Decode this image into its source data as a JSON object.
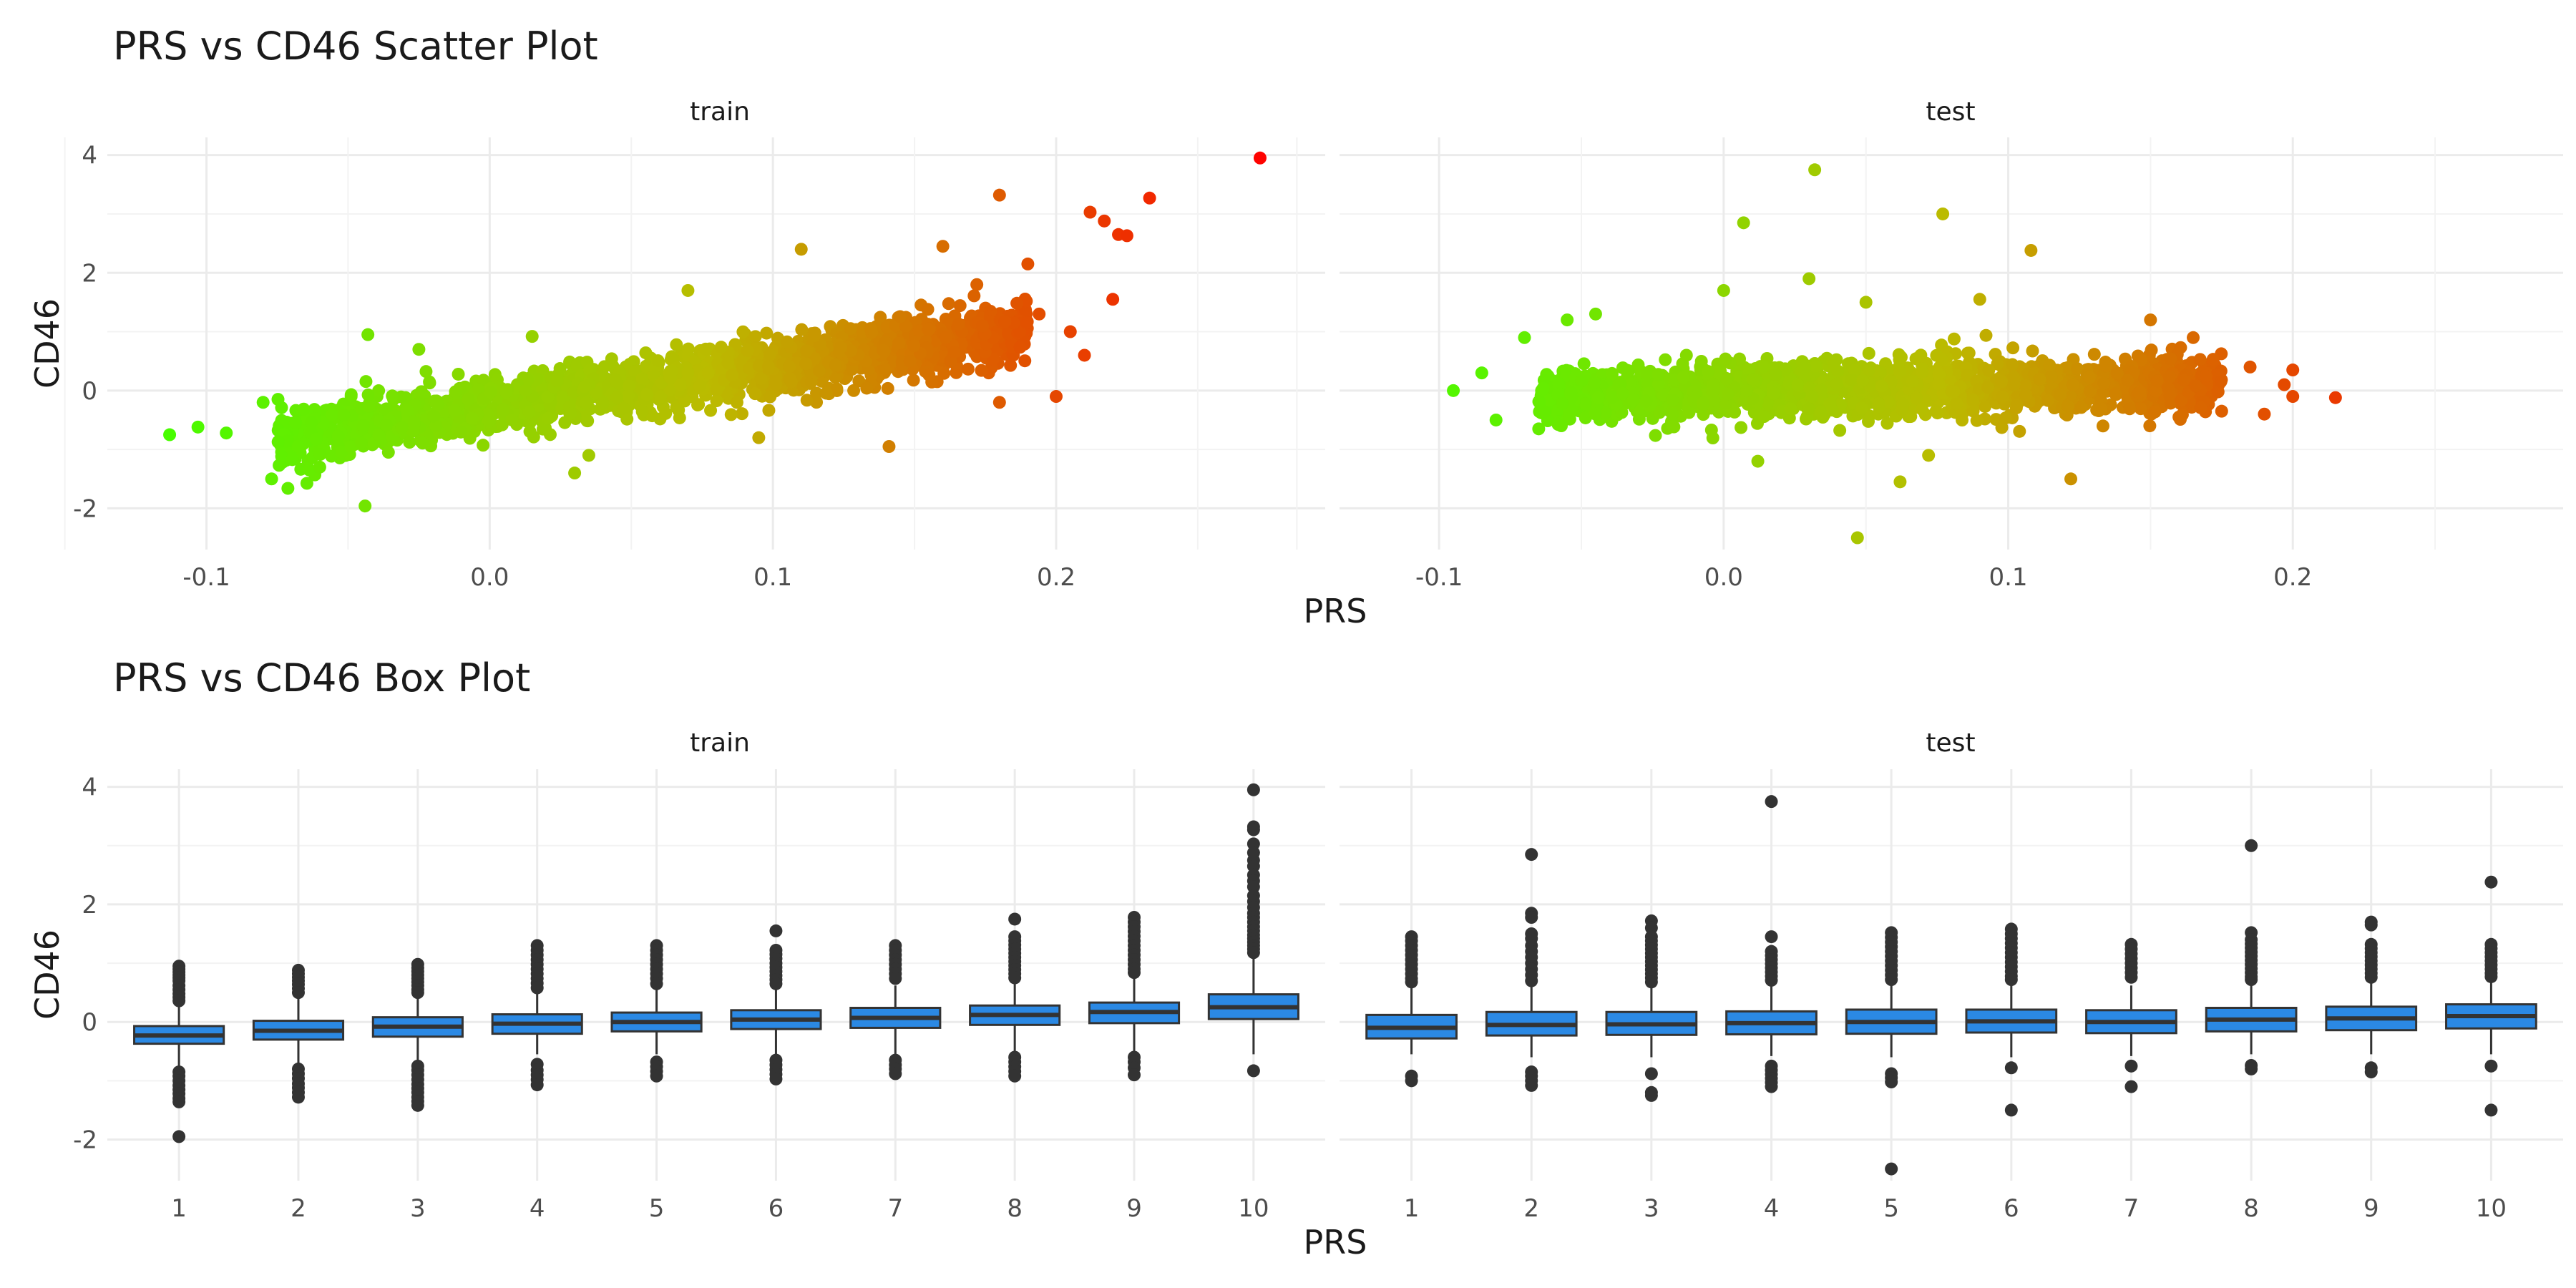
{
  "chart_data": [
    {
      "type": "scatter",
      "title": "PRS vs CD46 Scatter Plot",
      "xlabel": "PRS",
      "ylabel": "CD46",
      "xlim": [
        -0.135,
        0.295
      ],
      "ylim": [
        -2.7,
        4.3
      ],
      "x_ticks": [
        -0.1,
        0.0,
        0.1,
        0.2
      ],
      "x_tick_labels": [
        "-0.1",
        "0.0",
        "0.1",
        "0.2"
      ],
      "y_ticks": [
        -2,
        0,
        2,
        4
      ],
      "y_tick_labels": [
        "-2",
        "0",
        "2",
        "4"
      ],
      "grid": true,
      "color_gradient": {
        "low": "#44ff00",
        "mid": "#bbbb00",
        "high": "#ff0000",
        "mapped_to": "PRS"
      },
      "panels": [
        {
          "name": "train",
          "bulk": {
            "x_min": -0.075,
            "x_max": 0.19,
            "slope": 7.0,
            "intercept": -0.3,
            "y_spread": 0.45
          },
          "points": [
            [
              -0.113,
              -0.75
            ],
            [
              -0.103,
              -0.62
            ],
            [
              -0.093,
              -0.72
            ],
            [
              -0.08,
              -0.2
            ],
            [
              -0.077,
              -1.5
            ],
            [
              -0.044,
              -1.96
            ],
            [
              -0.043,
              0.95
            ],
            [
              -0.06,
              -1.3
            ],
            [
              -0.025,
              0.7
            ],
            [
              0.015,
              0.92
            ],
            [
              0.035,
              -1.1
            ],
            [
              0.03,
              -1.4
            ],
            [
              0.07,
              1.7
            ],
            [
              0.095,
              -0.8
            ],
            [
              0.11,
              2.4
            ],
            [
              0.141,
              -0.95
            ],
            [
              0.16,
              2.45
            ],
            [
              0.172,
              1.8
            ],
            [
              0.18,
              3.32
            ],
            [
              0.19,
              2.15
            ],
            [
              0.212,
              3.03
            ],
            [
              0.217,
              2.88
            ],
            [
              0.222,
              2.65
            ],
            [
              0.225,
              2.63
            ],
            [
              0.22,
              1.55
            ],
            [
              0.233,
              3.27
            ],
            [
              0.205,
              1.0
            ],
            [
              0.21,
              0.6
            ],
            [
              0.194,
              1.3
            ],
            [
              0.174,
              1.1
            ],
            [
              0.2,
              -0.1
            ],
            [
              0.18,
              -0.2
            ],
            [
              0.272,
              3.95
            ]
          ]
        },
        {
          "name": "test",
          "bulk": {
            "x_min": -0.065,
            "x_max": 0.175,
            "slope": 0.9,
            "intercept": -0.02,
            "y_spread": 0.42
          },
          "points": [
            [
              -0.095,
              0.0
            ],
            [
              -0.085,
              0.3
            ],
            [
              -0.07,
              0.9
            ],
            [
              -0.055,
              1.2
            ],
            [
              -0.045,
              1.3
            ],
            [
              -0.08,
              -0.5
            ],
            [
              -0.065,
              -0.65
            ],
            [
              0.007,
              2.85
            ],
            [
              0.032,
              3.75
            ],
            [
              0.077,
              3.0
            ],
            [
              0.108,
              2.38
            ],
            [
              0.122,
              -1.5
            ],
            [
              0.047,
              -2.5
            ],
            [
              0.062,
              -1.55
            ],
            [
              0.072,
              -1.1
            ],
            [
              0.012,
              -1.2
            ],
            [
              0.05,
              1.5
            ],
            [
              0.09,
              1.55
            ],
            [
              0.15,
              1.2
            ],
            [
              0.165,
              0.9
            ],
            [
              0.185,
              0.4
            ],
            [
              0.19,
              -0.4
            ],
            [
              0.2,
              0.35
            ],
            [
              0.2,
              -0.1
            ],
            [
              0.197,
              0.1
            ],
            [
              0.215,
              -0.12
            ],
            [
              0.175,
              -0.35
            ],
            [
              0.16,
              -0.45
            ],
            [
              0.03,
              1.9
            ],
            [
              0.0,
              1.7
            ]
          ]
        }
      ]
    },
    {
      "type": "box",
      "title": "PRS vs CD46 Box Plot",
      "xlabel": "PRS",
      "ylabel": "CD46",
      "categories": [
        "1",
        "2",
        "3",
        "4",
        "5",
        "6",
        "7",
        "8",
        "9",
        "10"
      ],
      "ylim": [
        -2.7,
        4.3
      ],
      "y_ticks": [
        -2,
        0,
        2,
        4
      ],
      "y_tick_labels": [
        "-2",
        "0",
        "2",
        "4"
      ],
      "box_color": "#2b89e4",
      "grid": true,
      "panels": [
        {
          "name": "train",
          "boxes": [
            {
              "lw": -0.8,
              "q1": -0.37,
              "med": -0.23,
              "q3": -0.07,
              "uw": 0.3,
              "out": [
                0.95,
                0.9,
                0.85,
                0.8,
                0.75,
                0.7,
                0.62,
                0.55,
                0.48,
                0.42,
                0.36,
                -0.85,
                -0.92,
                -1.0,
                -1.08,
                -1.15,
                -1.22,
                -1.3,
                -1.36,
                -1.95
              ]
            },
            {
              "lw": -0.75,
              "q1": -0.3,
              "med": -0.15,
              "q3": 0.02,
              "uw": 0.45,
              "out": [
                0.88,
                0.82,
                0.76,
                0.7,
                0.64,
                0.57,
                0.5,
                -0.8,
                -0.88,
                -0.96,
                -1.05,
                -1.12,
                -1.2,
                -1.28
              ]
            },
            {
              "lw": -0.7,
              "q1": -0.25,
              "med": -0.08,
              "q3": 0.08,
              "uw": 0.45,
              "out": [
                0.98,
                0.92,
                0.86,
                0.8,
                0.74,
                0.68,
                0.62,
                0.55,
                0.5,
                -0.75,
                -0.82,
                -0.9,
                -0.98,
                -1.06,
                -1.13,
                -1.2,
                -1.28,
                -1.35,
                -1.42
              ]
            },
            {
              "lw": -0.55,
              "q1": -0.2,
              "med": -0.03,
              "q3": 0.13,
              "uw": 0.5,
              "out": [
                1.3,
                1.22,
                1.14,
                1.06,
                0.98,
                0.9,
                0.82,
                0.74,
                0.66,
                0.58,
                -0.72,
                -0.82,
                -0.9,
                -0.98,
                -1.07
              ]
            },
            {
              "lw": -0.55,
              "q1": -0.16,
              "med": 0.0,
              "q3": 0.16,
              "uw": 0.55,
              "out": [
                1.3,
                1.22,
                1.14,
                1.06,
                0.98,
                0.9,
                0.82,
                0.74,
                0.65,
                -0.68,
                -0.76,
                -0.84,
                -0.92
              ]
            },
            {
              "lw": -0.55,
              "q1": -0.12,
              "med": 0.04,
              "q3": 0.2,
              "uw": 0.58,
              "out": [
                1.55,
                1.22,
                1.15,
                1.08,
                1.0,
                0.93,
                0.86,
                0.79,
                0.72,
                0.65,
                -0.65,
                -0.73,
                -0.81,
                -0.89,
                -0.97
              ]
            },
            {
              "lw": -0.55,
              "q1": -0.1,
              "med": 0.07,
              "q3": 0.24,
              "uw": 0.62,
              "out": [
                1.3,
                1.22,
                1.14,
                1.06,
                0.98,
                0.9,
                0.82,
                0.74,
                -0.65,
                -0.73,
                -0.8,
                -0.88
              ]
            },
            {
              "lw": -0.5,
              "q1": -0.05,
              "med": 0.12,
              "q3": 0.28,
              "uw": 0.68,
              "out": [
                1.75,
                1.45,
                1.38,
                1.31,
                1.24,
                1.17,
                1.1,
                1.03,
                0.96,
                0.89,
                0.82,
                0.75,
                -0.6,
                -0.68,
                -0.76,
                -0.84,
                -0.92
              ]
            },
            {
              "lw": -0.5,
              "q1": -0.02,
              "med": 0.17,
              "q3": 0.33,
              "uw": 0.78,
              "out": [
                1.78,
                1.7,
                1.62,
                1.54,
                1.46,
                1.38,
                1.3,
                1.22,
                1.14,
                1.06,
                0.98,
                0.9,
                0.84,
                -0.6,
                -0.68,
                -0.78,
                -0.9
              ]
            },
            {
              "lw": -0.55,
              "q1": 0.05,
              "med": 0.25,
              "q3": 0.47,
              "uw": 1.1,
              "out": [
                3.95,
                3.32,
                3.27,
                3.03,
                2.88,
                2.75,
                2.65,
                2.5,
                2.4,
                2.3,
                2.15,
                2.05,
                1.95,
                1.85,
                1.78,
                1.7,
                1.62,
                1.55,
                1.48,
                1.42,
                1.36,
                1.3,
                1.24,
                1.18,
                -0.83
              ]
            }
          ]
        },
        {
          "name": "test",
          "boxes": [
            {
              "lw": -0.55,
              "q1": -0.28,
              "med": -0.1,
              "q3": 0.12,
              "uw": 0.62,
              "out": [
                1.45,
                1.38,
                1.3,
                1.22,
                1.14,
                1.06,
                0.98,
                0.9,
                0.82,
                0.74,
                0.68,
                -0.92,
                -1.0
              ]
            },
            {
              "lw": -0.6,
              "q1": -0.23,
              "med": -0.05,
              "q3": 0.17,
              "uw": 0.62,
              "out": [
                2.85,
                1.85,
                1.78,
                1.5,
                1.42,
                1.3,
                1.2,
                1.1,
                1.0,
                0.9,
                0.8,
                0.7,
                -0.85,
                -0.92,
                -1.0,
                -1.08
              ]
            },
            {
              "lw": -0.6,
              "q1": -0.22,
              "med": -0.04,
              "q3": 0.17,
              "uw": 0.62,
              "out": [
                1.72,
                1.6,
                1.45,
                1.38,
                1.31,
                1.24,
                1.17,
                1.1,
                1.03,
                0.96,
                0.89,
                0.82,
                0.75,
                0.68,
                -0.88,
                -1.2,
                -1.25
              ]
            },
            {
              "lw": -0.58,
              "q1": -0.21,
              "med": -0.02,
              "q3": 0.18,
              "uw": 0.62,
              "out": [
                3.75,
                1.45,
                1.2,
                1.13,
                1.06,
                0.99,
                0.92,
                0.85,
                0.78,
                0.71,
                -0.75,
                -0.82,
                -0.89,
                -0.96,
                -1.03,
                -1.1
              ]
            },
            {
              "lw": -0.6,
              "q1": -0.2,
              "med": 0.0,
              "q3": 0.21,
              "uw": 0.65,
              "out": [
                1.52,
                1.44,
                1.36,
                1.28,
                1.2,
                1.12,
                1.04,
                0.96,
                0.88,
                0.8,
                0.72,
                -0.88,
                -0.95,
                -1.02,
                -2.5
              ]
            },
            {
              "lw": -0.6,
              "q1": -0.18,
              "med": 0.01,
              "q3": 0.21,
              "uw": 0.65,
              "out": [
                1.58,
                1.5,
                1.42,
                1.34,
                1.26,
                1.18,
                1.1,
                1.02,
                0.94,
                0.86,
                0.78,
                0.72,
                -0.78,
                -1.5
              ]
            },
            {
              "lw": -0.58,
              "q1": -0.19,
              "med": 0.0,
              "q3": 0.2,
              "uw": 0.62,
              "out": [
                1.32,
                1.24,
                1.16,
                1.08,
                1.0,
                0.92,
                0.84,
                0.76,
                -0.75,
                -1.1
              ]
            },
            {
              "lw": -0.55,
              "q1": -0.16,
              "med": 0.04,
              "q3": 0.24,
              "uw": 0.65,
              "out": [
                3.0,
                1.52,
                1.4,
                1.33,
                1.26,
                1.19,
                1.12,
                1.05,
                0.98,
                0.91,
                0.84,
                0.77,
                0.72,
                -0.74,
                -0.8
              ]
            },
            {
              "lw": -0.55,
              "q1": -0.14,
              "med": 0.06,
              "q3": 0.26,
              "uw": 0.68,
              "out": [
                1.7,
                1.65,
                1.32,
                1.25,
                1.18,
                1.11,
                1.04,
                0.97,
                0.9,
                0.83,
                0.76,
                -0.78,
                -0.85
              ]
            },
            {
              "lw": -0.55,
              "q1": -0.11,
              "med": 0.1,
              "q3": 0.3,
              "uw": 0.72,
              "out": [
                2.38,
                1.32,
                1.25,
                1.18,
                1.11,
                1.04,
                0.97,
                0.9,
                0.83,
                0.77,
                -0.75,
                -1.5
              ]
            }
          ]
        }
      ]
    }
  ]
}
